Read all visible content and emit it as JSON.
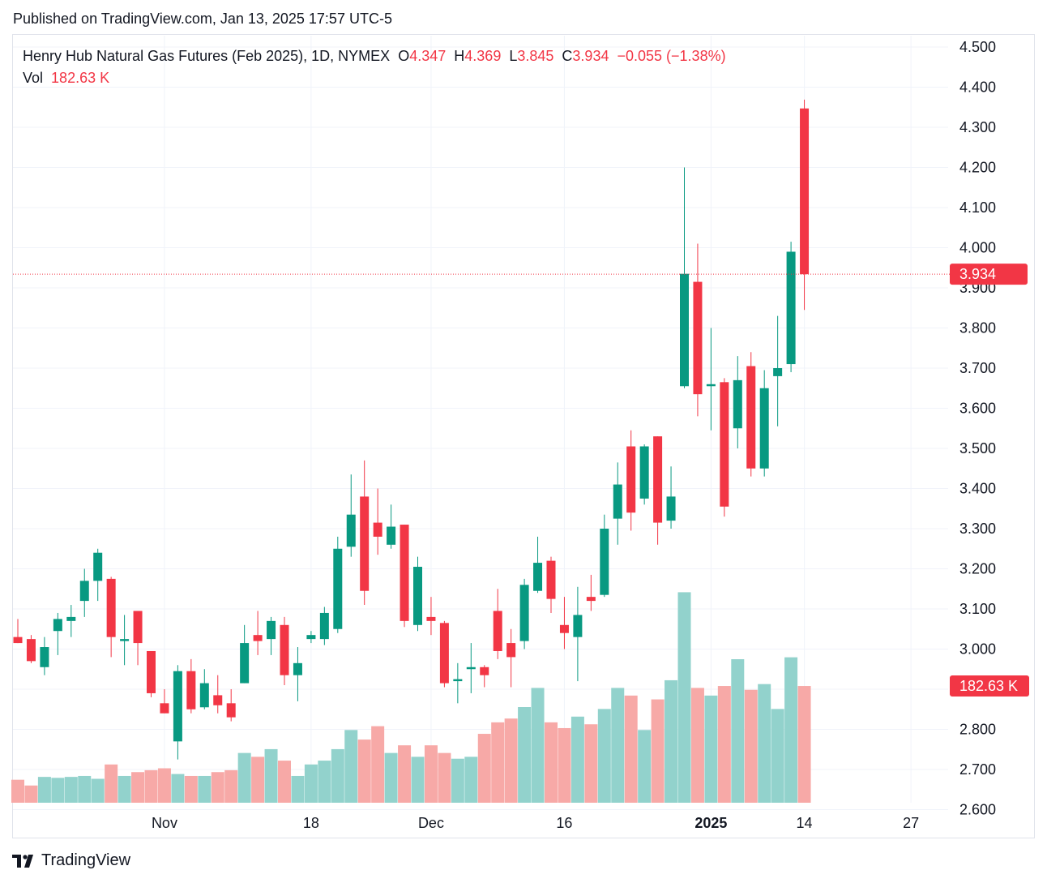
{
  "header": {
    "published": "Published on TradingView.com, Jan 13, 2025 17:57 UTC-5"
  },
  "legend": {
    "symbol": "Henry Hub Natural Gas Futures (Feb 2025), 1D, NYMEX",
    "o_label": "O",
    "o_value": "4.347",
    "h_label": "H",
    "h_value": "4.369",
    "l_label": "L",
    "l_value": "3.845",
    "c_label": "C",
    "c_value": "3.934",
    "change": "−0.055 (−1.38%)",
    "vol_label": "Vol",
    "vol_value": "182.63 K"
  },
  "price_badge": "3.934",
  "volume_badge": "182.63 K",
  "brand": "TradingView",
  "colors": {
    "up": "#089981",
    "down": "#f23645",
    "up_volume": "#92d2cc",
    "down_volume": "#f7a9a7",
    "grid": "#f0f3fa",
    "axis_text": "#131722"
  },
  "chart_data": {
    "type": "candlestick",
    "y_axis_ticks": [
      "4.500",
      "4.400",
      "4.300",
      "4.200",
      "4.100",
      "4.000",
      "3.900",
      "3.800",
      "3.700",
      "3.600",
      "3.500",
      "3.400",
      "3.300",
      "3.200",
      "3.100",
      "3.000",
      "2.900",
      "2.800",
      "2.700",
      "2.600"
    ],
    "y_range": [
      2.56,
      4.56
    ],
    "x_axis_labels": [
      {
        "label": "Nov",
        "index": 11,
        "bold": false
      },
      {
        "label": "18",
        "index": 22,
        "bold": false
      },
      {
        "label": "Dec",
        "index": 31,
        "bold": false
      },
      {
        "label": "16",
        "index": 41,
        "bold": false
      },
      {
        "label": "2025",
        "index": 52,
        "bold": true
      },
      {
        "label": "14",
        "index": 59,
        "bold": false
      },
      {
        "label": "27",
        "index": 67,
        "bold": false
      }
    ],
    "last_close": 3.934,
    "candles": [
      {
        "o": 3.03,
        "h": 3.075,
        "l": 3.015,
        "c": 3.015,
        "v": 0.12
      },
      {
        "o": 3.025,
        "h": 3.035,
        "l": 2.965,
        "c": 2.97,
        "v": 0.09
      },
      {
        "o": 2.955,
        "h": 3.03,
        "l": 2.935,
        "c": 3.005,
        "v": 0.135
      },
      {
        "o": 3.045,
        "h": 3.09,
        "l": 2.985,
        "c": 3.075,
        "v": 0.13
      },
      {
        "o": 3.07,
        "h": 3.11,
        "l": 3.03,
        "c": 3.08,
        "v": 0.135
      },
      {
        "o": 3.12,
        "h": 3.2,
        "l": 3.08,
        "c": 3.17,
        "v": 0.14
      },
      {
        "o": 3.17,
        "h": 3.25,
        "l": 3.12,
        "c": 3.24,
        "v": 0.125
      },
      {
        "o": 3.175,
        "h": 3.18,
        "l": 2.98,
        "c": 3.03,
        "v": 0.2
      },
      {
        "o": 3.02,
        "h": 3.085,
        "l": 2.96,
        "c": 3.025,
        "v": 0.14
      },
      {
        "o": 3.095,
        "h": 3.095,
        "l": 2.96,
        "c": 3.015,
        "v": 0.16
      },
      {
        "o": 2.995,
        "h": 2.995,
        "l": 2.88,
        "c": 2.89,
        "v": 0.17
      },
      {
        "o": 2.865,
        "h": 2.9,
        "l": 2.84,
        "c": 2.84,
        "v": 0.18
      },
      {
        "o": 2.77,
        "h": 2.96,
        "l": 2.725,
        "c": 2.945,
        "v": 0.15
      },
      {
        "o": 2.945,
        "h": 2.975,
        "l": 2.84,
        "c": 2.85,
        "v": 0.14
      },
      {
        "o": 2.855,
        "h": 2.95,
        "l": 2.85,
        "c": 2.915,
        "v": 0.14
      },
      {
        "o": 2.885,
        "h": 2.935,
        "l": 2.84,
        "c": 2.86,
        "v": 0.16
      },
      {
        "o": 2.865,
        "h": 2.9,
        "l": 2.82,
        "c": 2.83,
        "v": 0.17
      },
      {
        "o": 2.915,
        "h": 3.06,
        "l": 2.915,
        "c": 3.015,
        "v": 0.26
      },
      {
        "o": 3.035,
        "h": 3.095,
        "l": 2.985,
        "c": 3.02,
        "v": 0.24
      },
      {
        "o": 3.025,
        "h": 3.08,
        "l": 2.985,
        "c": 3.07,
        "v": 0.28
      },
      {
        "o": 3.06,
        "h": 3.08,
        "l": 2.91,
        "c": 2.935,
        "v": 0.22
      },
      {
        "o": 2.935,
        "h": 3.005,
        "l": 2.87,
        "c": 2.965,
        "v": 0.14
      },
      {
        "o": 3.025,
        "h": 3.045,
        "l": 3.015,
        "c": 3.035,
        "v": 0.2
      },
      {
        "o": 3.025,
        "h": 3.105,
        "l": 3.01,
        "c": 3.09,
        "v": 0.22
      },
      {
        "o": 3.05,
        "h": 3.28,
        "l": 3.04,
        "c": 3.25,
        "v": 0.28
      },
      {
        "o": 3.255,
        "h": 3.435,
        "l": 3.23,
        "c": 3.335,
        "v": 0.38
      },
      {
        "o": 3.38,
        "h": 3.47,
        "l": 3.11,
        "c": 3.145,
        "v": 0.33
      },
      {
        "o": 3.315,
        "h": 3.4,
        "l": 3.235,
        "c": 3.28,
        "v": 0.4
      },
      {
        "o": 3.26,
        "h": 3.36,
        "l": 3.25,
        "c": 3.305,
        "v": 0.26
      },
      {
        "o": 3.31,
        "h": 3.31,
        "l": 3.055,
        "c": 3.07,
        "v": 0.3
      },
      {
        "o": 3.06,
        "h": 3.23,
        "l": 3.045,
        "c": 3.205,
        "v": 0.24
      },
      {
        "o": 3.08,
        "h": 3.13,
        "l": 3.035,
        "c": 3.07,
        "v": 0.3
      },
      {
        "o": 3.065,
        "h": 3.07,
        "l": 2.905,
        "c": 2.915,
        "v": 0.26
      },
      {
        "o": 2.92,
        "h": 2.965,
        "l": 2.865,
        "c": 2.925,
        "v": 0.23
      },
      {
        "o": 2.95,
        "h": 3.015,
        "l": 2.89,
        "c": 2.955,
        "v": 0.24
      },
      {
        "o": 2.955,
        "h": 2.96,
        "l": 2.905,
        "c": 2.935,
        "v": 0.36
      },
      {
        "o": 3.095,
        "h": 3.15,
        "l": 2.975,
        "c": 2.995,
        "v": 0.42
      },
      {
        "o": 3.015,
        "h": 3.05,
        "l": 2.905,
        "c": 2.98,
        "v": 0.44
      },
      {
        "o": 3.02,
        "h": 3.175,
        "l": 3.0,
        "c": 3.16,
        "v": 0.5
      },
      {
        "o": 3.145,
        "h": 3.28,
        "l": 3.14,
        "c": 3.215,
        "v": 0.6
      },
      {
        "o": 3.22,
        "h": 3.23,
        "l": 3.09,
        "c": 3.125,
        "v": 0.42
      },
      {
        "o": 3.06,
        "h": 3.13,
        "l": 3.0,
        "c": 3.04,
        "v": 0.39
      },
      {
        "o": 3.03,
        "h": 3.155,
        "l": 2.92,
        "c": 3.085,
        "v": 0.45
      },
      {
        "o": 3.13,
        "h": 3.185,
        "l": 3.095,
        "c": 3.12,
        "v": 0.41
      },
      {
        "o": 3.135,
        "h": 3.335,
        "l": 3.13,
        "c": 3.3,
        "v": 0.49
      },
      {
        "o": 3.325,
        "h": 3.465,
        "l": 3.26,
        "c": 3.41,
        "v": 0.6
      },
      {
        "o": 3.505,
        "h": 3.545,
        "l": 3.295,
        "c": 3.34,
        "v": 0.56
      },
      {
        "o": 3.375,
        "h": 3.51,
        "l": 3.36,
        "c": 3.505,
        "v": 0.38
      },
      {
        "o": 3.53,
        "h": 3.53,
        "l": 3.26,
        "c": 3.315,
        "v": 0.54
      },
      {
        "o": 3.32,
        "h": 3.455,
        "l": 3.3,
        "c": 3.38,
        "v": 0.64
      },
      {
        "o": 3.655,
        "h": 4.2,
        "l": 3.65,
        "c": 3.935,
        "v": 1.1
      },
      {
        "o": 3.915,
        "h": 4.01,
        "l": 3.58,
        "c": 3.635,
        "v": 0.6
      },
      {
        "o": 3.655,
        "h": 3.8,
        "l": 3.545,
        "c": 3.66,
        "v": 0.56
      },
      {
        "o": 3.665,
        "h": 3.675,
        "l": 3.33,
        "c": 3.355,
        "v": 0.61
      },
      {
        "o": 3.55,
        "h": 3.73,
        "l": 3.5,
        "c": 3.67,
        "v": 0.75
      },
      {
        "o": 3.705,
        "h": 3.74,
        "l": 3.43,
        "c": 3.45,
        "v": 0.59
      },
      {
        "o": 3.45,
        "h": 3.695,
        "l": 3.43,
        "c": 3.65,
        "v": 0.62
      },
      {
        "o": 3.68,
        "h": 3.83,
        "l": 3.555,
        "c": 3.7,
        "v": 0.49
      },
      {
        "o": 3.71,
        "h": 4.015,
        "l": 3.69,
        "c": 3.99,
        "v": 0.76
      },
      {
        "o": 4.347,
        "h": 4.369,
        "l": 3.845,
        "c": 3.934,
        "v": 0.61
      }
    ]
  }
}
